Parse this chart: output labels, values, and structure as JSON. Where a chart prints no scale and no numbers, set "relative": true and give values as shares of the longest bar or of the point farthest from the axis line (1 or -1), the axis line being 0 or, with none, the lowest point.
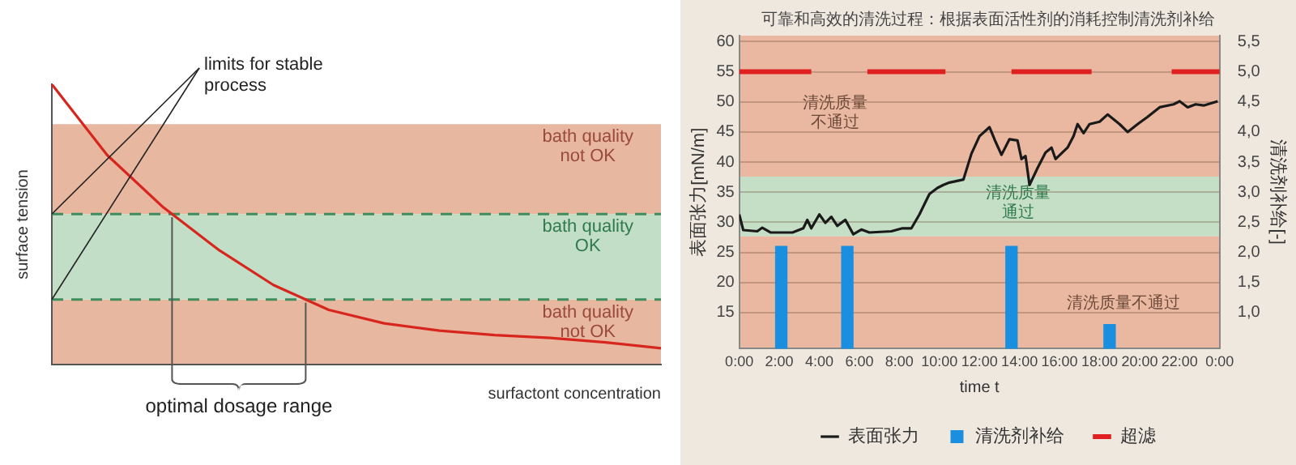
{
  "chart_data": [
    {
      "type": "line",
      "xlabel": "surfactont concentration",
      "ylabel": "surface tension",
      "relative": true,
      "grid": false,
      "legend": false,
      "marker": "none",
      "categories": [
        null,
        null,
        null,
        null,
        null,
        null,
        null,
        null,
        null,
        null,
        null,
        null
      ],
      "series": [
        {
          "color": "#d7261e",
          "values": [
            1,
            0.747,
            0.563,
            0.411,
            0.284,
            0.195,
            0.147,
            0.121,
            0.105,
            0.095,
            0.079,
            0.058
          ]
        }
      ],
      "bands": [
        {
          "axis": "y",
          "from": 0,
          "to": 0.232,
          "label": "bath quality not OK",
          "color": "#e8b7a0"
        },
        {
          "axis": "y",
          "from": 0.232,
          "to": 0.537,
          "label": "bath quality OK",
          "color": "#c2dec6"
        },
        {
          "axis": "y",
          "from": 0.537,
          "to": 0.858,
          "label": "bath quality not OK",
          "color": "#e8b7a0"
        }
      ],
      "ref_lines": [
        {
          "axis": "y",
          "value": 0.537,
          "color": "#3f8c5e",
          "line_style": "dashed"
        },
        {
          "axis": "y",
          "value": 0.232,
          "color": "#3f8c5e",
          "line_style": "dashed"
        }
      ],
      "annotations": [
        "limits for stable process",
        "optimal dosage range"
      ]
    },
    {
      "type": "line",
      "title": "可靠和高效的清洗过程：根据表面活性剂的消耗控制清洗剂补给",
      "xlabel": "time t",
      "ylabel": "表面张力[mN/m]",
      "y2label": "清洗剂补给[-]",
      "grid": "y",
      "legend": "bottom",
      "marker": "none",
      "xlim": [
        0,
        24
      ],
      "xticks": [
        {
          "value": 0,
          "label": "0:00"
        },
        {
          "value": 2,
          "label": "2:00"
        },
        {
          "value": 4,
          "label": "4:00"
        },
        {
          "value": 6,
          "label": "6:00"
        },
        {
          "value": 8,
          "label": "8:00"
        },
        {
          "value": 10,
          "label": "10:00"
        },
        {
          "value": 12,
          "label": "12:00"
        },
        {
          "value": 14,
          "label": "14:00"
        },
        {
          "value": 16,
          "label": "16:00"
        },
        {
          "value": 18,
          "label": "18:00"
        },
        {
          "value": 20,
          "label": "20:00"
        },
        {
          "value": 22,
          "label": "22:00"
        },
        {
          "value": 24,
          "label": "0:00"
        }
      ],
      "ylim": [
        9,
        61
      ],
      "yticks": [
        15,
        20,
        25,
        30,
        35,
        40,
        45,
        50,
        55,
        60
      ],
      "y2lim": [
        0.4,
        5.6
      ],
      "y2ticks": [
        {
          "value": 1,
          "label": "1,0"
        },
        {
          "value": 1.5,
          "label": "1,5"
        },
        {
          "value": 2,
          "label": "2,0"
        },
        {
          "value": 2.5,
          "label": "2,5"
        },
        {
          "value": 3,
          "label": "3,0"
        },
        {
          "value": 3.5,
          "label": "3,5"
        },
        {
          "value": 4,
          "label": "4,0"
        },
        {
          "value": 4.5,
          "label": "4,5"
        },
        {
          "value": 5,
          "label": "5,0"
        },
        {
          "value": 5.5,
          "label": "5,5"
        }
      ],
      "bands": [
        {
          "axis": "y",
          "from": 9,
          "to": 27.7,
          "label": "清洗质量不通过",
          "color": "#eab8a0"
        },
        {
          "axis": "y",
          "from": 27.7,
          "to": 37.6,
          "label": "清洗质量通过",
          "color": "#c5dfc6"
        },
        {
          "axis": "y",
          "from": 37.6,
          "to": 61,
          "label": "清洗质量不通过",
          "color": "#eab8a0"
        }
      ],
      "series": [
        {
          "name": "表面张力",
          "color": "#1a1a1a",
          "x": [
            0,
            0.2,
            0.9,
            1.15,
            1.56,
            2.66,
            3.2,
            3.4,
            3.6,
            4.0,
            4.3,
            4.6,
            4.9,
            5.3,
            5.7,
            6.1,
            6.5,
            7.6,
            8.15,
            8.6,
            9.0,
            9.5,
            9.9,
            10.2,
            10.5,
            11.2,
            11.6,
            12.0,
            12.5,
            12.8,
            13.1,
            13.5,
            13.9,
            14.1,
            14.3,
            14.5,
            14.9,
            15.3,
            15.6,
            15.8,
            16.4,
            16.7,
            16.9,
            17.2,
            17.5,
            18.0,
            18.4,
            19.0,
            19.4,
            19.9,
            20.4,
            21.0,
            21.7,
            22.0,
            22.4,
            22.8,
            23.2,
            23.9
          ],
          "values": [
            31.3,
            28.7,
            28.5,
            29.1,
            28.3,
            28.3,
            29,
            30.4,
            29,
            31.3,
            29.9,
            30.9,
            29.4,
            30.4,
            28,
            28.8,
            28.3,
            28.5,
            29,
            29,
            31.3,
            34.7,
            35.7,
            36.2,
            36.6,
            37.1,
            41.4,
            44.3,
            45.8,
            43.4,
            41.2,
            43.8,
            43.6,
            40.5,
            41,
            36.2,
            39,
            41.6,
            42.4,
            40.5,
            42.4,
            44.3,
            46.3,
            44.8,
            46.3,
            46.7,
            47.9,
            46.3,
            45,
            46.3,
            47.5,
            49.1,
            49.6,
            50.1,
            49.1,
            49.6,
            49.4,
            50.1
          ]
        },
        {
          "name": "清洗剂补给",
          "type": "bar",
          "axis": "y2",
          "color": "#1a8fe0",
          "x": [
            2.1,
            5.4,
            13.6,
            18.5
          ],
          "values": [
            2.1,
            2.1,
            2.1,
            0.8
          ]
        },
        {
          "name": "超滤",
          "type": "line",
          "axis": "y2",
          "color": "#e02020",
          "x": [
            0,
            3.6,
            3.7,
            6.4,
            10.3,
            10.4,
            13.6,
            17.6,
            17.7,
            21.6,
            24
          ],
          "values": [
            5,
            5,
            null,
            5,
            5,
            null,
            5,
            5,
            null,
            5,
            5
          ]
        }
      ]
    }
  ]
}
